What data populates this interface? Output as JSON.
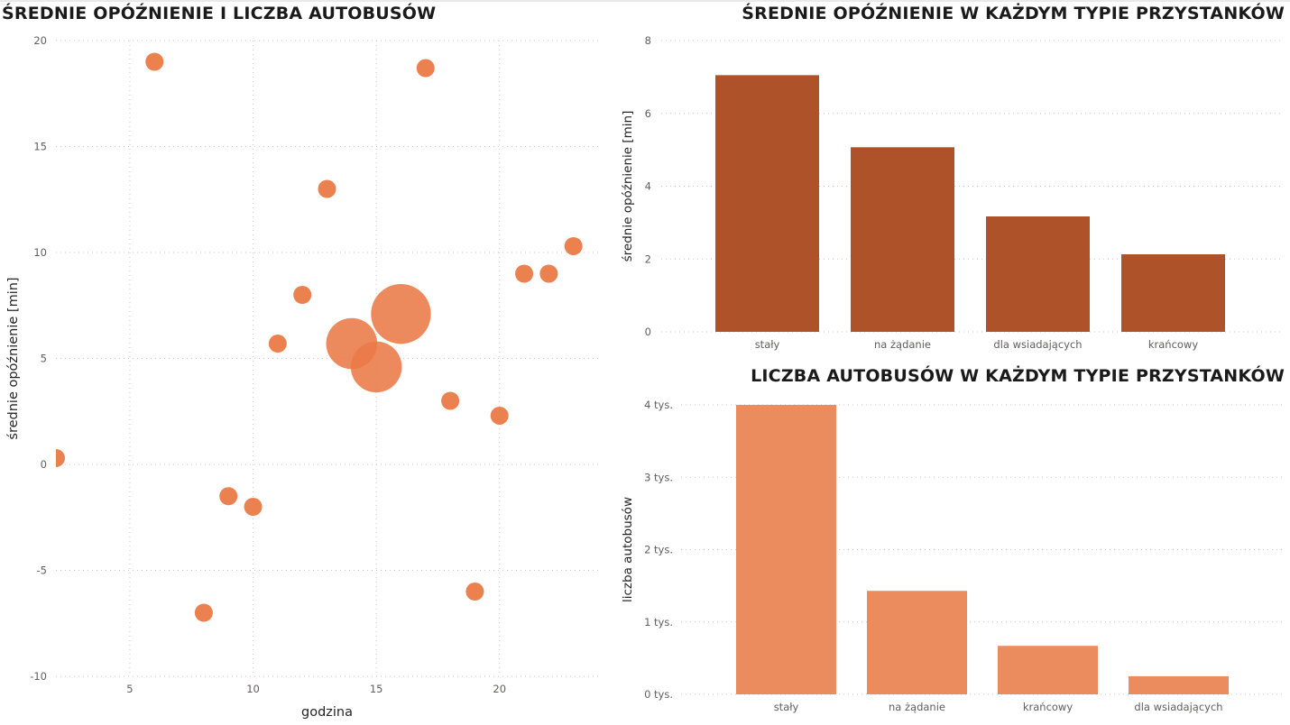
{
  "colors": {
    "bubble": "#eb7a47",
    "bar_delay": "#ae5229",
    "bar_count": "#eb8c5e"
  },
  "chart_data": [
    {
      "type": "scatter",
      "title": "ŚREDNIE OPÓŹNIENIE I LICZBA AUTOBUSÓW",
      "xlabel": "godzina",
      "ylabel": "średnie opóźnienie [min]",
      "xlim": [
        2,
        24
      ],
      "ylim": [
        -10,
        20
      ],
      "xticks": [
        5,
        10,
        15,
        20
      ],
      "yticks": [
        20,
        15,
        10,
        5,
        0,
        -5,
        -10
      ],
      "grid": true,
      "points": [
        {
          "x": 2,
          "y": 0.3,
          "size": 1
        },
        {
          "x": 6,
          "y": 19,
          "size": 1
        },
        {
          "x": 8,
          "y": -7,
          "size": 1
        },
        {
          "x": 9,
          "y": -1.5,
          "size": 1
        },
        {
          "x": 10,
          "y": -2,
          "size": 1
        },
        {
          "x": 11,
          "y": 5.7,
          "size": 1
        },
        {
          "x": 12,
          "y": 8,
          "size": 1
        },
        {
          "x": 13,
          "y": 13,
          "size": 1
        },
        {
          "x": 14,
          "y": 5.7,
          "size": 8
        },
        {
          "x": 15,
          "y": 4.6,
          "size": 8
        },
        {
          "x": 16,
          "y": 7.1,
          "size": 11
        },
        {
          "x": 17,
          "y": 18.7,
          "size": 1
        },
        {
          "x": 18,
          "y": 3,
          "size": 1
        },
        {
          "x": 19,
          "y": -6,
          "size": 1
        },
        {
          "x": 20,
          "y": 2.3,
          "size": 1
        },
        {
          "x": 21,
          "y": 9,
          "size": 1
        },
        {
          "x": 22,
          "y": 9,
          "size": 1
        },
        {
          "x": 23,
          "y": 10.3,
          "size": 1
        }
      ]
    },
    {
      "type": "bar",
      "title": "ŚREDNIE OPÓŹNIENIE W KAŻDYM TYPIE PRZYSTANKÓW",
      "xlabel": "",
      "ylabel": "średnie opóźnienie [min]",
      "categories": [
        "stały",
        "na żądanie",
        "dla wsiadających",
        "krańcowy"
      ],
      "values": [
        7.05,
        5.07,
        3.17,
        2.13
      ],
      "ylim": [
        0,
        8
      ],
      "yticks": [
        0,
        2,
        4,
        6,
        8
      ],
      "grid": true
    },
    {
      "type": "bar",
      "title": "LICZBA AUTOBUSÓW W KAŻDYM TYPIE PRZYSTANKÓW",
      "xlabel": "",
      "ylabel": "liczba autobusów",
      "categories": [
        "stały",
        "na żądanie",
        "krańcowy",
        "dla wsiadających"
      ],
      "values": [
        4000,
        1430,
        670,
        250
      ],
      "ylim": [
        0,
        4000
      ],
      "yticks": [
        0,
        1000,
        2000,
        3000,
        4000
      ],
      "ytick_labels": [
        "0 tys.",
        "1 tys.",
        "2 tys.",
        "3 tys.",
        "4 tys."
      ],
      "grid": true
    }
  ]
}
